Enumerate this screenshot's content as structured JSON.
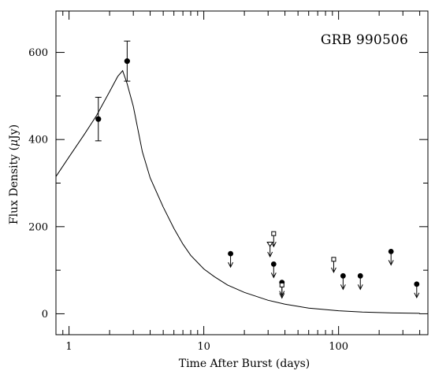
{
  "chart_data": {
    "type": "scatter",
    "title": "GRB 990506",
    "xlabel": "Time After Burst (days)",
    "ylabel": "Flux Density (μJy)",
    "ylabel_parts": {
      "prefix": "Flux Density (",
      "mu": "μ",
      "suffix": "Jy)"
    },
    "x_scale": "log",
    "xlim": [
      0.8,
      460
    ],
    "ylim": [
      -48,
      695
    ],
    "x_ticks": [
      1,
      10,
      100
    ],
    "x_tick_labels": [
      "1",
      "10",
      "100"
    ],
    "y_ticks": [
      0,
      200,
      400,
      600
    ],
    "y_tick_labels": [
      "0",
      "200",
      "400",
      "600"
    ],
    "grid": false,
    "detections": [
      {
        "x": 1.65,
        "y": 447,
        "err": 50
      },
      {
        "x": 2.7,
        "y": 580,
        "err": 46
      }
    ],
    "upper_limits_filled": [
      {
        "x": 15.8,
        "y": 138
      },
      {
        "x": 33.0,
        "y": 114
      },
      {
        "x": 38.0,
        "y": 72
      },
      {
        "x": 108.0,
        "y": 87
      },
      {
        "x": 145.0,
        "y": 87
      },
      {
        "x": 245.0,
        "y": 143
      },
      {
        "x": 380.0,
        "y": 68
      }
    ],
    "upper_limits_open": [
      {
        "x": 33.0,
        "y": 184
      },
      {
        "x": 38.0,
        "y": 66
      },
      {
        "x": 92.0,
        "y": 125
      }
    ],
    "upper_limits_triangle": [
      {
        "x": 31.0,
        "y": 160
      }
    ],
    "model_curve": {
      "x": [
        0.78,
        1.0,
        1.3,
        1.6,
        2.0,
        2.3,
        2.5,
        2.7,
        3.0,
        3.5,
        4.0,
        5.0,
        6.0,
        7.0,
        8.0,
        10.0,
        12.0,
        15.0,
        20.0,
        30.0,
        40.0,
        60.0,
        100.0,
        150.0,
        250.0,
        400.0
      ],
      "y": [
        315,
        360,
        412,
        455,
        510,
        545,
        558,
        528,
        476,
        372,
        312,
        245,
        196,
        160,
        134,
        103,
        85,
        66,
        49,
        31,
        22,
        13,
        7,
        4,
        2,
        1
      ]
    }
  }
}
